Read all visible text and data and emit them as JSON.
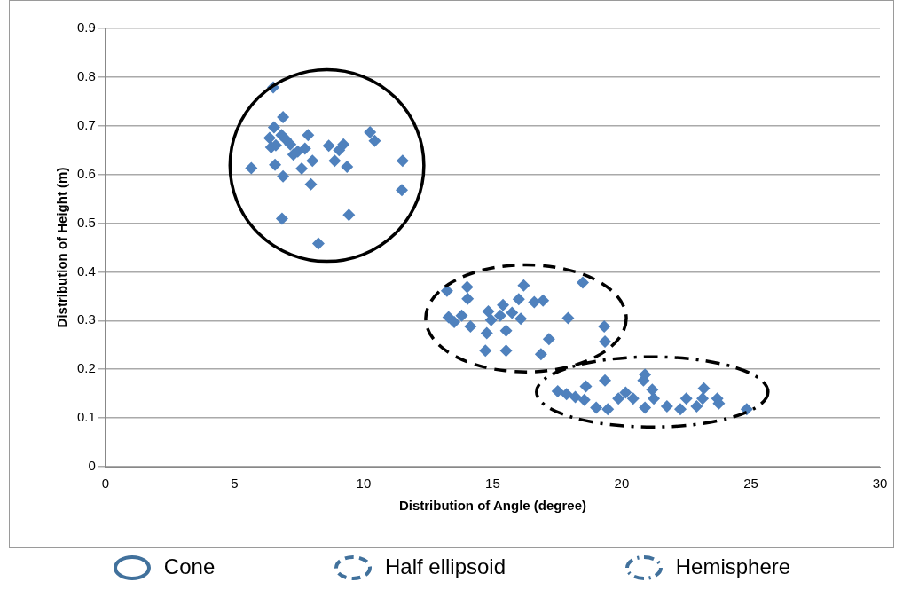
{
  "chart_data": {
    "type": "scatter",
    "xlabel": "Distribution of Angle (degree)",
    "ylabel": "Distribution of Height (m)",
    "xlim": [
      0,
      30
    ],
    "xticks": [
      0,
      5,
      10,
      15,
      20,
      25,
      30
    ],
    "ylim": [
      0,
      0.9
    ],
    "yticks": [
      0,
      0.1,
      0.2,
      0.3,
      0.4,
      0.5,
      0.6,
      0.7,
      0.8,
      0.9
    ],
    "grid": "y",
    "marker": "diamond",
    "annotations": [
      "Cone",
      "Half ellipsoid",
      "Hemisphere"
    ],
    "series": [
      {
        "color": "#4f81bd",
        "line_style": "solid",
        "x": [
          6.5,
          6.88,
          6.53,
          6.36,
          6.82,
          6.99,
          6.42,
          7.16,
          7.85,
          7.45,
          7.73,
          7.28,
          8.02,
          7.6,
          8.65,
          9.22,
          9.05,
          8.88,
          9.36,
          10.25,
          10.43,
          11.51,
          11.48,
          5.65,
          6.57,
          6.88,
          7.96,
          6.84,
          9.43,
          8.25,
          6.6
        ],
        "values": [
          0.779,
          0.718,
          0.697,
          0.675,
          0.681,
          0.672,
          0.656,
          0.662,
          0.681,
          0.647,
          0.653,
          0.641,
          0.628,
          0.612,
          0.659,
          0.662,
          0.65,
          0.628,
          0.616,
          0.687,
          0.669,
          0.628,
          0.568,
          0.613,
          0.62,
          0.596,
          0.58,
          0.509,
          0.517,
          0.458,
          0.66
        ]
      },
      {
        "color": "#4f81bd",
        "line_style": "dashed",
        "x": [
          13.23,
          14.01,
          14.03,
          13.29,
          13.51,
          13.8,
          14.14,
          14.83,
          15.4,
          14.94,
          15.29,
          15.75,
          16.09,
          14.77,
          15.52,
          14.72,
          15.52,
          16.2,
          16.01,
          16.61,
          16.95,
          17.92,
          17.18,
          16.87,
          18.49,
          19.32,
          19.35
        ],
        "values": [
          0.361,
          0.369,
          0.345,
          0.307,
          0.297,
          0.31,
          0.288,
          0.319,
          0.332,
          0.301,
          0.31,
          0.316,
          0.304,
          0.274,
          0.279,
          0.238,
          0.238,
          0.372,
          0.344,
          0.338,
          0.341,
          0.305,
          0.262,
          0.231,
          0.378,
          0.288,
          0.257
        ]
      },
      {
        "color": "#4f81bd",
        "line_style": "dashdot",
        "x": [
          17.52,
          17.86,
          18.2,
          18.61,
          18.55,
          19.35,
          19.01,
          19.46,
          19.87,
          20.15,
          20.44,
          20.84,
          20.9,
          21.18,
          21.24,
          20.9,
          21.75,
          22.27,
          22.5,
          23.18,
          23.13,
          22.9,
          23.7,
          24.84,
          23.76
        ],
        "values": [
          0.155,
          0.149,
          0.143,
          0.165,
          0.137,
          0.177,
          0.121,
          0.118,
          0.14,
          0.152,
          0.14,
          0.177,
          0.189,
          0.158,
          0.14,
          0.121,
          0.124,
          0.118,
          0.14,
          0.161,
          0.14,
          0.124,
          0.14,
          0.118,
          0.13
        ]
      }
    ]
  }
}
